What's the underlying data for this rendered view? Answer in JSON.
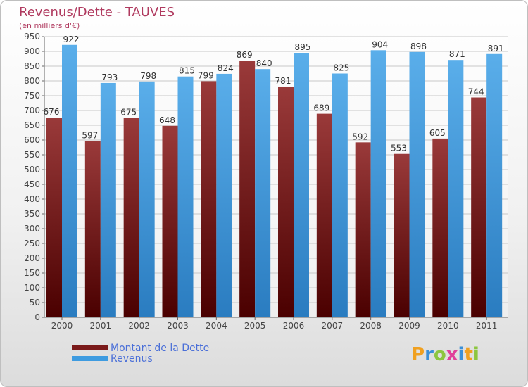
{
  "title": "Revenus/Dette - TAUVES",
  "subtitle": "(en milliers d'€)",
  "chart_data": {
    "type": "bar",
    "categories": [
      "2000",
      "2001",
      "2002",
      "2003",
      "2004",
      "2005",
      "2006",
      "2007",
      "2008",
      "2009",
      "2010",
      "2011"
    ],
    "series": [
      {
        "name": "Montant de la Dette",
        "color": "#7a1a1a",
        "values": [
          676,
          597,
          675,
          648,
          799,
          869,
          781,
          689,
          592,
          553,
          605,
          744
        ]
      },
      {
        "name": "Revenus",
        "color": "#3e9be0",
        "values": [
          922,
          793,
          798,
          815,
          824,
          840,
          895,
          825,
          904,
          898,
          871,
          891
        ]
      }
    ],
    "ylim": [
      0,
      950
    ],
    "ytick_step": 50,
    "ytick_labels": [
      "0",
      "50",
      "100",
      "150",
      "200",
      "250",
      "300",
      "350",
      "400",
      "450",
      "500",
      "550",
      "600",
      "650",
      "700",
      "750",
      "800",
      "850",
      "900",
      "950"
    ],
    "grid": true,
    "legend": "bottom-left",
    "title": "Revenus/Dette - TAUVES",
    "ylabel": "(en milliers d'€)",
    "xlabel": ""
  },
  "legend": {
    "items": [
      {
        "label": "Montant de la Dette",
        "color": "#7a1a1a"
      },
      {
        "label": "Revenus",
        "color": "#3e9be0"
      }
    ]
  },
  "logo": {
    "text": "Proxiti",
    "letters": [
      {
        "ch": "P",
        "color": "#f0a020"
      },
      {
        "ch": "r",
        "color": "#3a8fd8"
      },
      {
        "ch": "o",
        "color": "#8cc63f"
      },
      {
        "ch": "x",
        "color": "#e0409a"
      },
      {
        "ch": "i",
        "color": "#3a8fd8"
      },
      {
        "ch": "t",
        "color": "#f0a020"
      },
      {
        "ch": "i",
        "color": "#8cc63f"
      }
    ]
  }
}
